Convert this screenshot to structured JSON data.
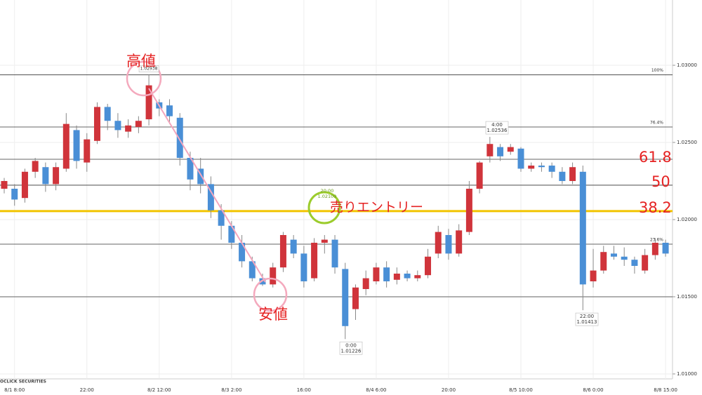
{
  "chart_data": {
    "type": "candlestick",
    "categories": [
      null,
      "8/1 8:00",
      null,
      null,
      null,
      null,
      null,
      null,
      "22:00",
      null,
      null,
      null,
      null,
      null,
      null,
      "8/2 12:00",
      null,
      null,
      null,
      null,
      null,
      null,
      "8/3 2:00",
      null,
      null,
      null,
      null,
      null,
      null,
      "16:00",
      null,
      null,
      null,
      null,
      null,
      null,
      "8/4 6:00",
      null,
      null,
      null,
      null,
      null,
      null,
      "20:00",
      null,
      null,
      null,
      null,
      null,
      null,
      "8/5 10:00",
      null,
      null,
      null,
      null,
      null,
      null,
      "8/6 0:00",
      null,
      null,
      null,
      null,
      null,
      null,
      "8/8 15:00"
    ],
    "open": [
      1.022,
      1.022,
      1.0214,
      1.0231,
      1.0234,
      1.0223,
      1.0233,
      1.0258,
      1.0237,
      1.0251,
      1.0273,
      1.0264,
      1.0257,
      1.026,
      1.0265,
      1.0276,
      1.0274,
      1.0266,
      1.024,
      1.0233,
      1.0223,
      1.0206,
      1.0196,
      1.0185,
      1.0173,
      1.0162,
      1.0158,
      1.0169,
      1.0187,
      1.0178,
      1.0162,
      1.0185,
      1.0187,
      1.0168,
      1.0142,
      1.0155,
      1.016,
      1.0169,
      1.0161,
      1.0165,
      1.0162,
      1.0164,
      1.0178,
      1.019,
      1.0178,
      1.0192,
      1.022,
      1.0241,
      1.0247,
      1.0244,
      1.0246,
      1.0233,
      1.0235,
      1.0235,
      1.0231,
      1.0225,
      1.0231,
      1.016,
      1.0167,
      1.0178,
      1.0176,
      1.0174,
      1.0167,
      1.0177,
      1.0185
    ],
    "high": [
      1.0227,
      1.0223,
      1.0233,
      1.024,
      1.0237,
      1.0237,
      1.0269,
      1.0261,
      1.0256,
      1.0276,
      1.0275,
      1.0269,
      1.0265,
      1.0267,
      1.02938,
      1.0278,
      1.0278,
      1.0269,
      1.0244,
      1.024,
      1.0228,
      1.021,
      1.0199,
      1.019,
      1.0176,
      1.0165,
      1.0172,
      1.0192,
      1.019,
      1.0183,
      1.0188,
      1.019,
      1.019,
      1.0172,
      1.0158,
      1.0167,
      1.0172,
      1.0173,
      1.0169,
      1.0167,
      1.0167,
      1.0181,
      1.0196,
      1.0194,
      1.0197,
      1.0225,
      1.0238,
      1.02536,
      1.0249,
      1.0249,
      1.0247,
      1.0237,
      1.0237,
      1.0237,
      1.0234,
      1.0237,
      1.0235,
      1.0181,
      1.0183,
      1.0183,
      1.0182,
      1.0176,
      1.0181,
      1.0188,
      1.0187
    ],
    "low": [
      1.0217,
      1.0209,
      1.0211,
      1.0227,
      1.0218,
      1.0219,
      1.0231,
      1.0233,
      1.0231,
      1.0249,
      1.0258,
      1.0253,
      1.0253,
      1.0256,
      1.0261,
      1.0267,
      1.0262,
      1.0235,
      1.0219,
      1.0217,
      1.0201,
      1.0187,
      1.0181,
      1.0169,
      1.016,
      1.0157,
      1.0156,
      1.0166,
      1.0175,
      1.0156,
      1.016,
      1.0178,
      1.0165,
      1.01226,
      1.0135,
      1.0151,
      1.0158,
      1.0156,
      1.0158,
      1.016,
      1.016,
      1.0162,
      1.0175,
      1.0174,
      1.0176,
      1.019,
      1.0217,
      1.0237,
      1.0238,
      1.0242,
      1.0231,
      1.0231,
      1.0231,
      1.0227,
      1.0223,
      1.0223,
      1.01413,
      1.0156,
      1.0165,
      1.0174,
      1.017,
      1.0165,
      1.0165,
      1.0174,
      1.0176
    ],
    "close": [
      1.0225,
      1.0213,
      1.0231,
      1.0238,
      1.0223,
      1.0234,
      1.0262,
      1.0238,
      1.0252,
      1.0273,
      1.0264,
      1.0258,
      1.0261,
      1.0264,
      1.0287,
      1.0272,
      1.0267,
      1.024,
      1.0226,
      1.0223,
      1.0206,
      1.0196,
      1.0185,
      1.0173,
      1.0162,
      1.0158,
      1.0169,
      1.019,
      1.0178,
      1.016,
      1.0185,
      1.0187,
      1.0169,
      1.0131,
      1.0156,
      1.0162,
      1.0169,
      1.016,
      1.0165,
      1.0162,
      1.0164,
      1.0176,
      1.0192,
      1.0178,
      1.0193,
      1.022,
      1.0237,
      1.0249,
      1.0241,
      1.0247,
      1.0233,
      1.0235,
      1.0234,
      1.0231,
      1.0225,
      1.0234,
      1.0158,
      1.0167,
      1.0179,
      1.0176,
      1.0174,
      1.017,
      1.0177,
      1.0185,
      1.0178
    ],
    "up_color": "#d0343b",
    "down_color": "#4a8fd6",
    "ylim": [
      1.00968,
      1.03423
    ],
    "yticks": [
      {
        "value": 1.03,
        "label": "1.03000"
      },
      {
        "value": 1.025,
        "label": "1.02500"
      },
      {
        "value": 1.02,
        "label": "1.02000"
      },
      {
        "value": 1.015,
        "label": "1.01500"
      },
      {
        "value": 1.01,
        "label": "1.01000"
      }
    ],
    "grid": true,
    "levels": [
      {
        "value": 1.02938,
        "label": "100%"
      },
      {
        "value": 1.026,
        "label": "76.4%"
      },
      {
        "value": 1.02391
      },
      {
        "value": 1.02223
      },
      {
        "value": 1.01841,
        "label": "23.6%"
      },
      {
        "value": 1.015
      }
    ],
    "entry_line": {
      "value": 1.02055,
      "color": "#f2c400"
    },
    "markers": [
      {
        "time": "4:00",
        "value": 1.02536
      },
      {
        "time": "0:00",
        "value": 1.01226
      },
      {
        "time": "22:00",
        "value": 1.01413
      },
      {
        "time": "20:00",
        "value": 1.02109
      }
    ],
    "notes": [
      "高値",
      "安値",
      "売りエントリー",
      "61.8",
      "50",
      "38.2"
    ],
    "watermark": "OCLICK SECURITIES"
  }
}
